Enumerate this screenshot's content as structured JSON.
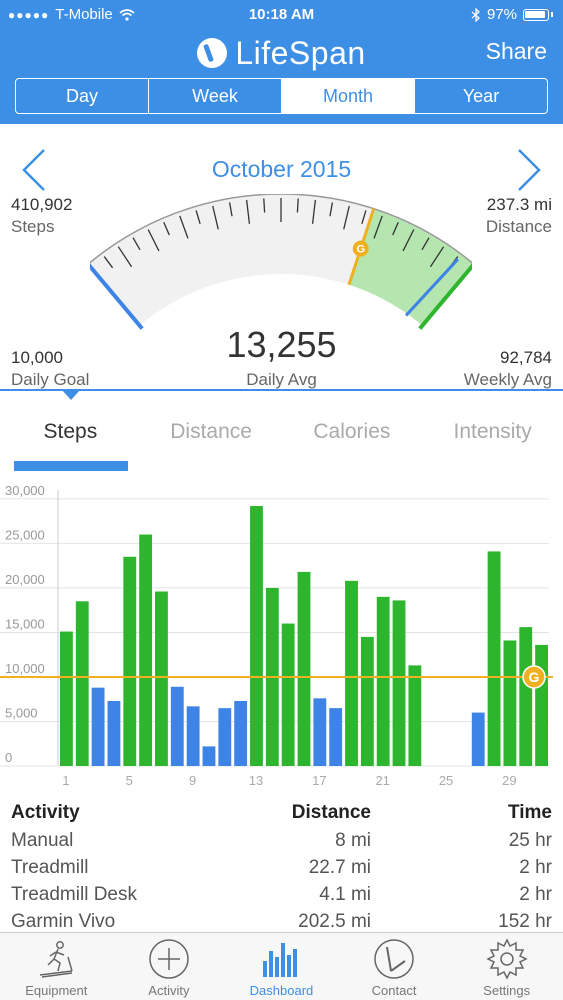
{
  "status_bar": {
    "carrier": "T-Mobile",
    "time": "10:18 AM",
    "battery": "97%"
  },
  "header": {
    "title": "LifeSpan",
    "share_label": "Share"
  },
  "period_tabs": [
    {
      "label": "Day",
      "active": false
    },
    {
      "label": "Week",
      "active": false
    },
    {
      "label": "Month",
      "active": true
    },
    {
      "label": "Year",
      "active": false
    }
  ],
  "summary": {
    "period": "October 2015",
    "steps_value": "410,902",
    "steps_label": "Steps",
    "distance_value": "237.3 mi",
    "distance_label": "Distance",
    "daily_goal_value": "10,000",
    "daily_goal_label": "Daily Goal",
    "daily_avg_value": "13,255",
    "daily_avg_label": "Daily Avg",
    "weekly_avg_value": "92,784",
    "weekly_avg_label": "Weekly Avg",
    "goal_marker": "G"
  },
  "metric_tabs": [
    {
      "label": "Steps",
      "active": true
    },
    {
      "label": "Distance",
      "active": false
    },
    {
      "label": "Calories",
      "active": false
    },
    {
      "label": "Intensity",
      "active": false
    }
  ],
  "chart_data": {
    "type": "bar",
    "categories": [
      1,
      2,
      3,
      4,
      5,
      6,
      7,
      8,
      9,
      10,
      11,
      12,
      13,
      14,
      15,
      16,
      17,
      18,
      19,
      20,
      21,
      22,
      23,
      24,
      25,
      26,
      27,
      28,
      29,
      30,
      31
    ],
    "values": [
      15100,
      18500,
      8800,
      7300,
      23500,
      26000,
      19600,
      8900,
      6700,
      2200,
      6500,
      7300,
      29200,
      20000,
      16000,
      21800,
      7600,
      6500,
      20800,
      14500,
      19000,
      18600,
      11300,
      0,
      0,
      0,
      6000,
      24100,
      14100,
      15600,
      13600
    ],
    "x_tick_labels": [
      "1",
      "5",
      "9",
      "13",
      "17",
      "21",
      "25",
      "29"
    ],
    "y_tick_labels": [
      "0",
      "5,000",
      "10,000",
      "15,000",
      "20,000",
      "25,000",
      "30,000"
    ],
    "ylim": [
      0,
      31000
    ],
    "goal": 10000,
    "goal_marker": "G",
    "colors": {
      "above_goal": "#2db52d",
      "below_goal": "#3d84e6",
      "goal_line": "#f0b020"
    }
  },
  "activity_table": {
    "headers": [
      "Activity",
      "Distance",
      "Time"
    ],
    "rows": [
      [
        "Manual",
        "8 mi",
        "25 hr"
      ],
      [
        "Treadmill",
        "22.7 mi",
        "2 hr"
      ],
      [
        "Treadmill Desk",
        "4.1 mi",
        "2 hr"
      ],
      [
        "Garmin Vivo",
        "202.5 mi",
        "152 hr"
      ]
    ]
  },
  "bottom_nav": [
    {
      "label": "Equipment",
      "icon": "treadmill-icon",
      "active": false
    },
    {
      "label": "Activity",
      "icon": "plus-circle-icon",
      "active": false
    },
    {
      "label": "Dashboard",
      "icon": "bar-chart-icon",
      "active": true
    },
    {
      "label": "Contact",
      "icon": "contact-logo-icon",
      "active": false
    },
    {
      "label": "Settings",
      "icon": "gear-icon",
      "active": false
    }
  ],
  "colors": {
    "brand": "#3d8fe6",
    "goal": "#f0b020",
    "good": "#2db52d"
  }
}
